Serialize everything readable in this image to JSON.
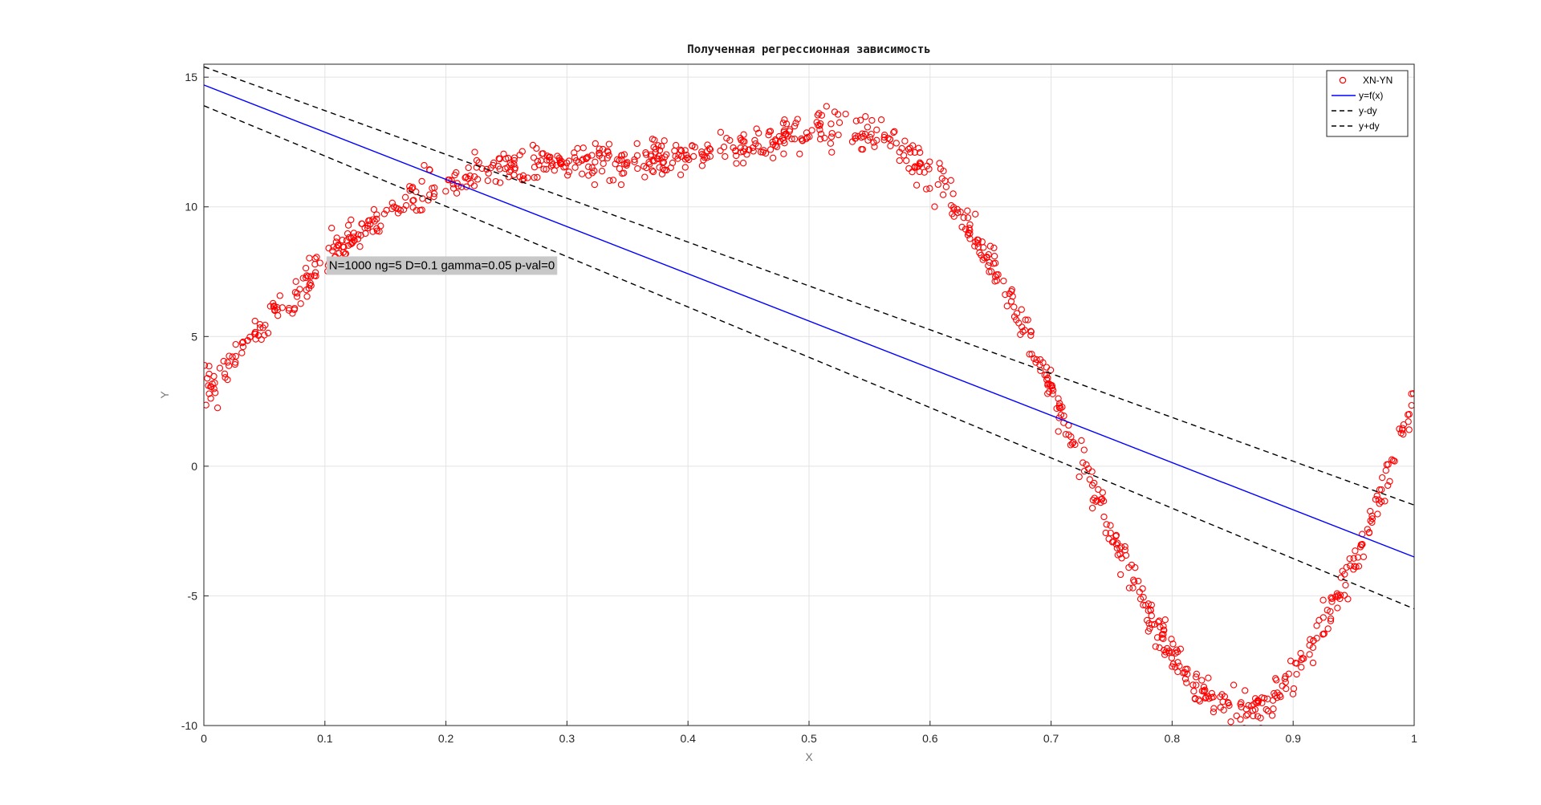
{
  "chart_data": {
    "type": "scatter",
    "title": "Полученная регрессионная зависимость",
    "xlabel": "X",
    "ylabel": "Y",
    "xlim": [
      0,
      1
    ],
    "ylim": [
      -10,
      15.5
    ],
    "xticks": [
      "0",
      "0.1",
      "0.2",
      "0.3",
      "0.4",
      "0.5",
      "0.6",
      "0.7",
      "0.8",
      "0.9",
      "1"
    ],
    "yticks": [
      "-10",
      "-5",
      "0",
      "5",
      "10",
      "15"
    ],
    "grid": true,
    "legend_position": "top-right",
    "annotation": "N=1000 ng=5 D=0.1 gamma=0.05 p-val=0",
    "series": [
      {
        "name": "XN-YN",
        "kind": "scatter",
        "marker": "circle",
        "color": "#ff0000",
        "trend_points": [
          [
            0.0,
            2.9
          ],
          [
            0.02,
            3.9
          ],
          [
            0.05,
            5.4
          ],
          [
            0.08,
            6.9
          ],
          [
            0.1,
            7.9
          ],
          [
            0.13,
            9.0
          ],
          [
            0.16,
            10.0
          ],
          [
            0.2,
            10.9
          ],
          [
            0.25,
            11.5
          ],
          [
            0.3,
            11.7
          ],
          [
            0.35,
            11.7
          ],
          [
            0.4,
            11.9
          ],
          [
            0.45,
            12.3
          ],
          [
            0.5,
            13.0
          ],
          [
            0.53,
            13.0
          ],
          [
            0.56,
            12.7
          ],
          [
            0.59,
            11.8
          ],
          [
            0.62,
            10.1
          ],
          [
            0.65,
            8.0
          ],
          [
            0.68,
            5.2
          ],
          [
            0.7,
            3.0
          ],
          [
            0.72,
            0.8
          ],
          [
            0.74,
            -1.5
          ],
          [
            0.76,
            -3.6
          ],
          [
            0.78,
            -5.6
          ],
          [
            0.8,
            -7.2
          ],
          [
            0.82,
            -8.5
          ],
          [
            0.84,
            -9.3
          ],
          [
            0.86,
            -9.5
          ],
          [
            0.88,
            -9.0
          ],
          [
            0.9,
            -8.0
          ],
          [
            0.92,
            -6.6
          ],
          [
            0.94,
            -4.8
          ],
          [
            0.96,
            -2.6
          ],
          [
            0.98,
            0.0
          ],
          [
            1.0,
            2.7
          ]
        ],
        "count": 1000,
        "noise_sd": 0.35
      },
      {
        "name": "y=f(x)",
        "kind": "line",
        "style": "solid",
        "color": "#0000ff",
        "x": [
          0,
          1
        ],
        "y": [
          14.7,
          -3.5
        ]
      },
      {
        "name": "y-dy",
        "kind": "line",
        "style": "dashed",
        "color": "#000000",
        "x": [
          0,
          1
        ],
        "y": [
          13.9,
          -5.5
        ]
      },
      {
        "name": "y+dy",
        "kind": "line",
        "style": "dashed",
        "color": "#000000",
        "x": [
          0,
          1
        ],
        "y": [
          15.4,
          -1.5
        ]
      }
    ]
  }
}
